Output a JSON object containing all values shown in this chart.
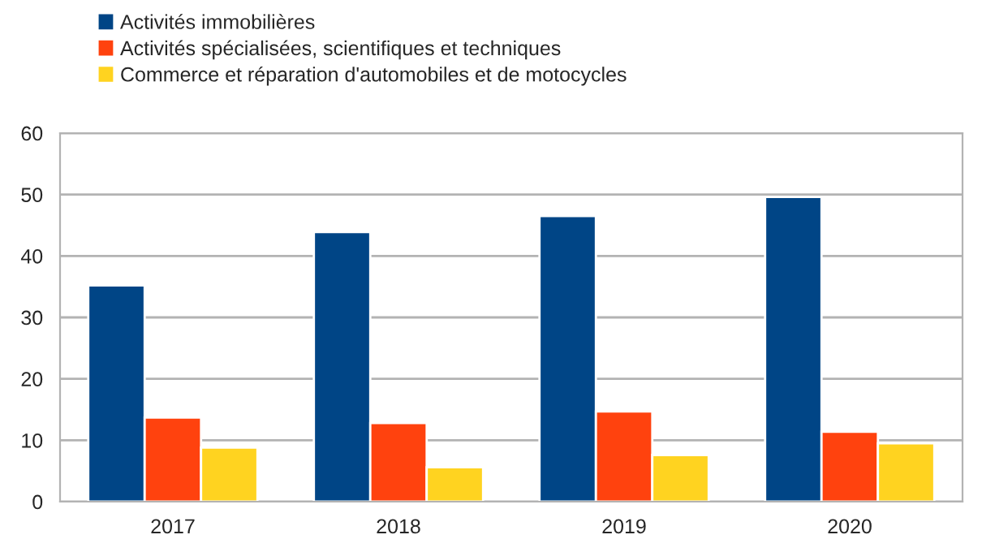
{
  "chart_data": {
    "type": "bar",
    "categories": [
      "2017",
      "2018",
      "2019",
      "2020"
    ],
    "series": [
      {
        "name": "Activités immobilières",
        "color": "#004586",
        "values": [
          35.2,
          43.9,
          46.5,
          49.6
        ]
      },
      {
        "name": "Activités spécialisées, scientifiques et techniques",
        "color": "#ff420e",
        "values": [
          13.7,
          12.8,
          14.7,
          11.4
        ]
      },
      {
        "name": "Commerce et réparation d'automobiles et de motocycles",
        "color": "#ffd320",
        "values": [
          8.8,
          5.6,
          7.6,
          9.5
        ]
      }
    ],
    "ylim": [
      0,
      60
    ],
    "yticks": [
      0,
      10,
      20,
      30,
      40,
      50,
      60
    ],
    "grid": "y",
    "legend": "top"
  }
}
